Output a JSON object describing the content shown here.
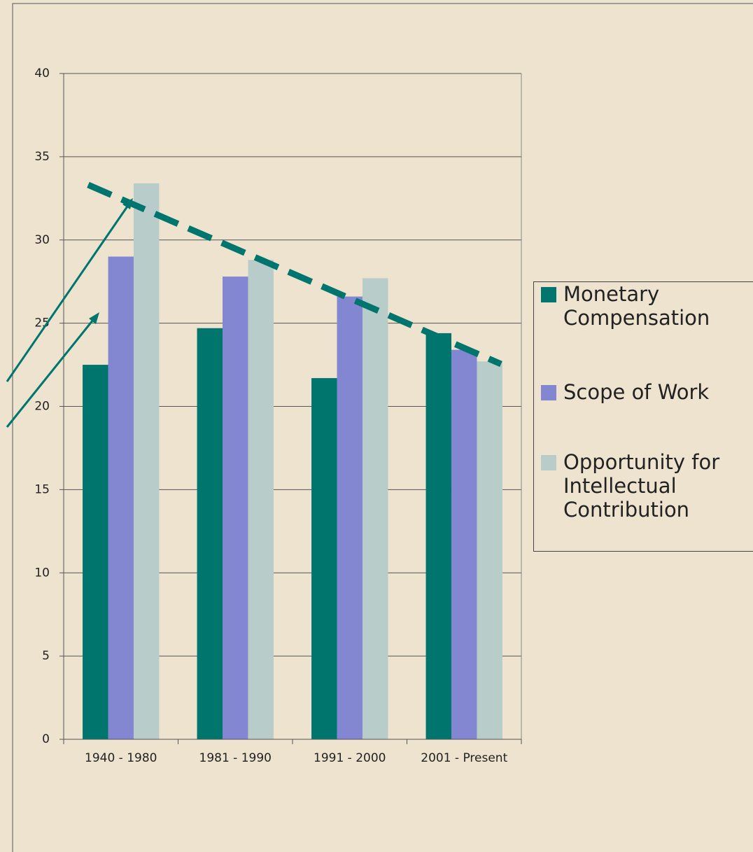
{
  "chart_data": {
    "type": "bar",
    "categories": [
      "1940 - 1980",
      "1981 - 1990",
      "1991 - 2000",
      "2001 - Present"
    ],
    "series": [
      {
        "name": "Monetary Compensation",
        "color": "#00756e",
        "values": [
          22.5,
          24.7,
          21.7,
          24.4
        ]
      },
      {
        "name": "Scope of Work",
        "color": "#8386d0",
        "values": [
          29.0,
          27.8,
          26.6,
          23.4
        ]
      },
      {
        "name": "Opportunity for Intellectual Contribution",
        "color": "#b8cdca",
        "values": [
          33.4,
          28.8,
          27.7,
          22.7
        ]
      }
    ],
    "ylim": [
      0,
      40
    ],
    "yticks": [
      0,
      5,
      10,
      15,
      20,
      25,
      30,
      35,
      40
    ],
    "grid": true,
    "legend": "right"
  }
}
